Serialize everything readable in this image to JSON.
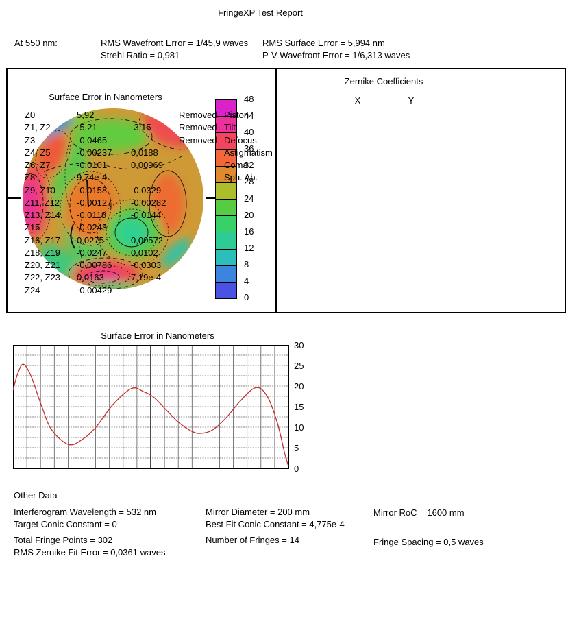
{
  "title": "FringeXP Test Report",
  "header": {
    "at_label": "At 550 nm:",
    "rms_wavefront": "RMS Wavefront Error = 1/45,9 waves",
    "strehl": "Strehl Ratio = 0,981",
    "rms_surface": "RMS Surface Error = 5,994 nm",
    "pv_wavefront": "P-V Wavefront Error = 1/6,313 waves"
  },
  "surface_map": {
    "title": "Surface Error in Nanometers",
    "colorbar": {
      "ticks": [
        48,
        44,
        40,
        36,
        32,
        28,
        24,
        20,
        16,
        12,
        8,
        4,
        0
      ],
      "segment_colors_top_to_bottom": [
        "#DB21C9",
        "#EF2F9B",
        "#F4455F",
        "#F2683B",
        "#DE8A2D",
        "#ADBE2B",
        "#55CC41",
        "#38D169",
        "#2FCB94",
        "#2CBEBB",
        "#3C85DE",
        "#4A52E4"
      ]
    }
  },
  "zernike": {
    "title": "Zernike Coefficients",
    "col_x": "X",
    "col_y": "Y",
    "rows": [
      {
        "label": "Z0",
        "x": "5,92",
        "y": "",
        "removed": "Removed",
        "name": "Piston"
      },
      {
        "label": "Z1, Z2",
        "x": "-5,21",
        "y": "-3,15",
        "removed": "Removed",
        "name": "Tilt"
      },
      {
        "label": "Z3",
        "x": "-0,0465",
        "y": "",
        "removed": "Removed",
        "name": "Defocus"
      },
      {
        "label": "Z4, Z5",
        "x": "-0,00237",
        "y": "0,0188",
        "removed": "",
        "name": "Astigmatism"
      },
      {
        "label": "Z6, Z7",
        "x": "-0,0101",
        "y": "0,00969",
        "removed": "",
        "name": "Coma"
      },
      {
        "label": "Z8",
        "x": "9,74e-4",
        "y": "",
        "removed": "",
        "name": "Sph. Ab."
      },
      {
        "label": "Z9, Z10",
        "x": "-0,0158",
        "y": "-0,0329",
        "removed": "",
        "name": ""
      },
      {
        "label": "Z11, Z12",
        "x": "-0,00127",
        "y": "-0,00282",
        "removed": "",
        "name": ""
      },
      {
        "label": "Z13, Z14",
        "x": "-0,0118",
        "y": "-0,0144",
        "removed": "",
        "name": ""
      },
      {
        "label": "Z15",
        "x": "-0,0243",
        "y": "",
        "removed": "",
        "name": ""
      },
      {
        "label": "Z16, Z17",
        "x": "0,0275",
        "y": "0,00572",
        "removed": "",
        "name": ""
      },
      {
        "label": "Z18, Z19",
        "x": "-0,0247",
        "y": "0,0102",
        "removed": "",
        "name": ""
      },
      {
        "label": "Z20, Z21",
        "x": "-0,00786",
        "y": "-0,0303",
        "removed": "",
        "name": ""
      },
      {
        "label": "Z22, Z23",
        "x": "0,0163",
        "y": "7,19e-4",
        "removed": "",
        "name": ""
      },
      {
        "label": "Z24",
        "x": "-0,00429",
        "y": "",
        "removed": "",
        "name": ""
      }
    ]
  },
  "chart_data": [
    {
      "type": "heatmap",
      "title": "Surface Error in Nanometers",
      "units": "nm",
      "shape": "circular-contour-map",
      "scale_range": [
        0,
        48
      ],
      "scale_ticks": [
        0,
        4,
        8,
        12,
        16,
        20,
        24,
        28,
        32,
        36,
        40,
        44,
        48
      ],
      "notable_features": "tan/orange background ~28 nm; green lobes top-center and left band ~20 nm; teal pocket center-right ~16 nm; red/magenta hot spots at left rim and bottom-center ~40-46 nm; red patch top-right rim; cyan-blue rim top-left and bottom-right ~8 nm"
    },
    {
      "type": "line",
      "title": "Surface Error in Nanometers",
      "ylabel": "",
      "ylim": [
        0,
        30
      ],
      "yticks": [
        30,
        25,
        20,
        15,
        10,
        5,
        0
      ],
      "grid": "on",
      "line_color": "#c03030",
      "x": [
        0,
        0.017,
        0.037,
        0.065,
        0.102,
        0.139,
        0.201,
        0.251,
        0.301,
        0.363,
        0.43,
        0.475,
        0.512,
        0.562,
        0.599,
        0.649,
        0.682,
        0.724,
        0.774,
        0.823,
        0.881,
        0.923,
        0.96,
        0.985,
        1.0
      ],
      "y": [
        19.0,
        23.0,
        25.3,
        22.5,
        15.5,
        9.5,
        5.8,
        7.0,
        10.0,
        15.5,
        19.4,
        18.6,
        17.2,
        13.8,
        11.3,
        9.0,
        8.5,
        9.3,
        12.3,
        16.2,
        19.6,
        17.5,
        11.0,
        4.0,
        0.5
      ]
    }
  ],
  "other_data": {
    "heading": "Other Data",
    "interferogram_wavelength": "Interferogram Wavelength = 532 nm",
    "target_conic": "Target Conic Constant = 0",
    "total_fringe_points": "Total Fringe Points = 302",
    "rms_zernike_fit": "RMS Zernike Fit Error = 0,0361 waves",
    "mirror_diameter": "Mirror Diameter = 200 mm",
    "best_fit_conic": "Best Fit Conic Constant = 4,775e-4",
    "number_of_fringes": "Number of Fringes = 14",
    "mirror_roc": "Mirror RoC = 1600 mm",
    "fringe_spacing": "Fringe Spacing = 0,5 waves"
  }
}
